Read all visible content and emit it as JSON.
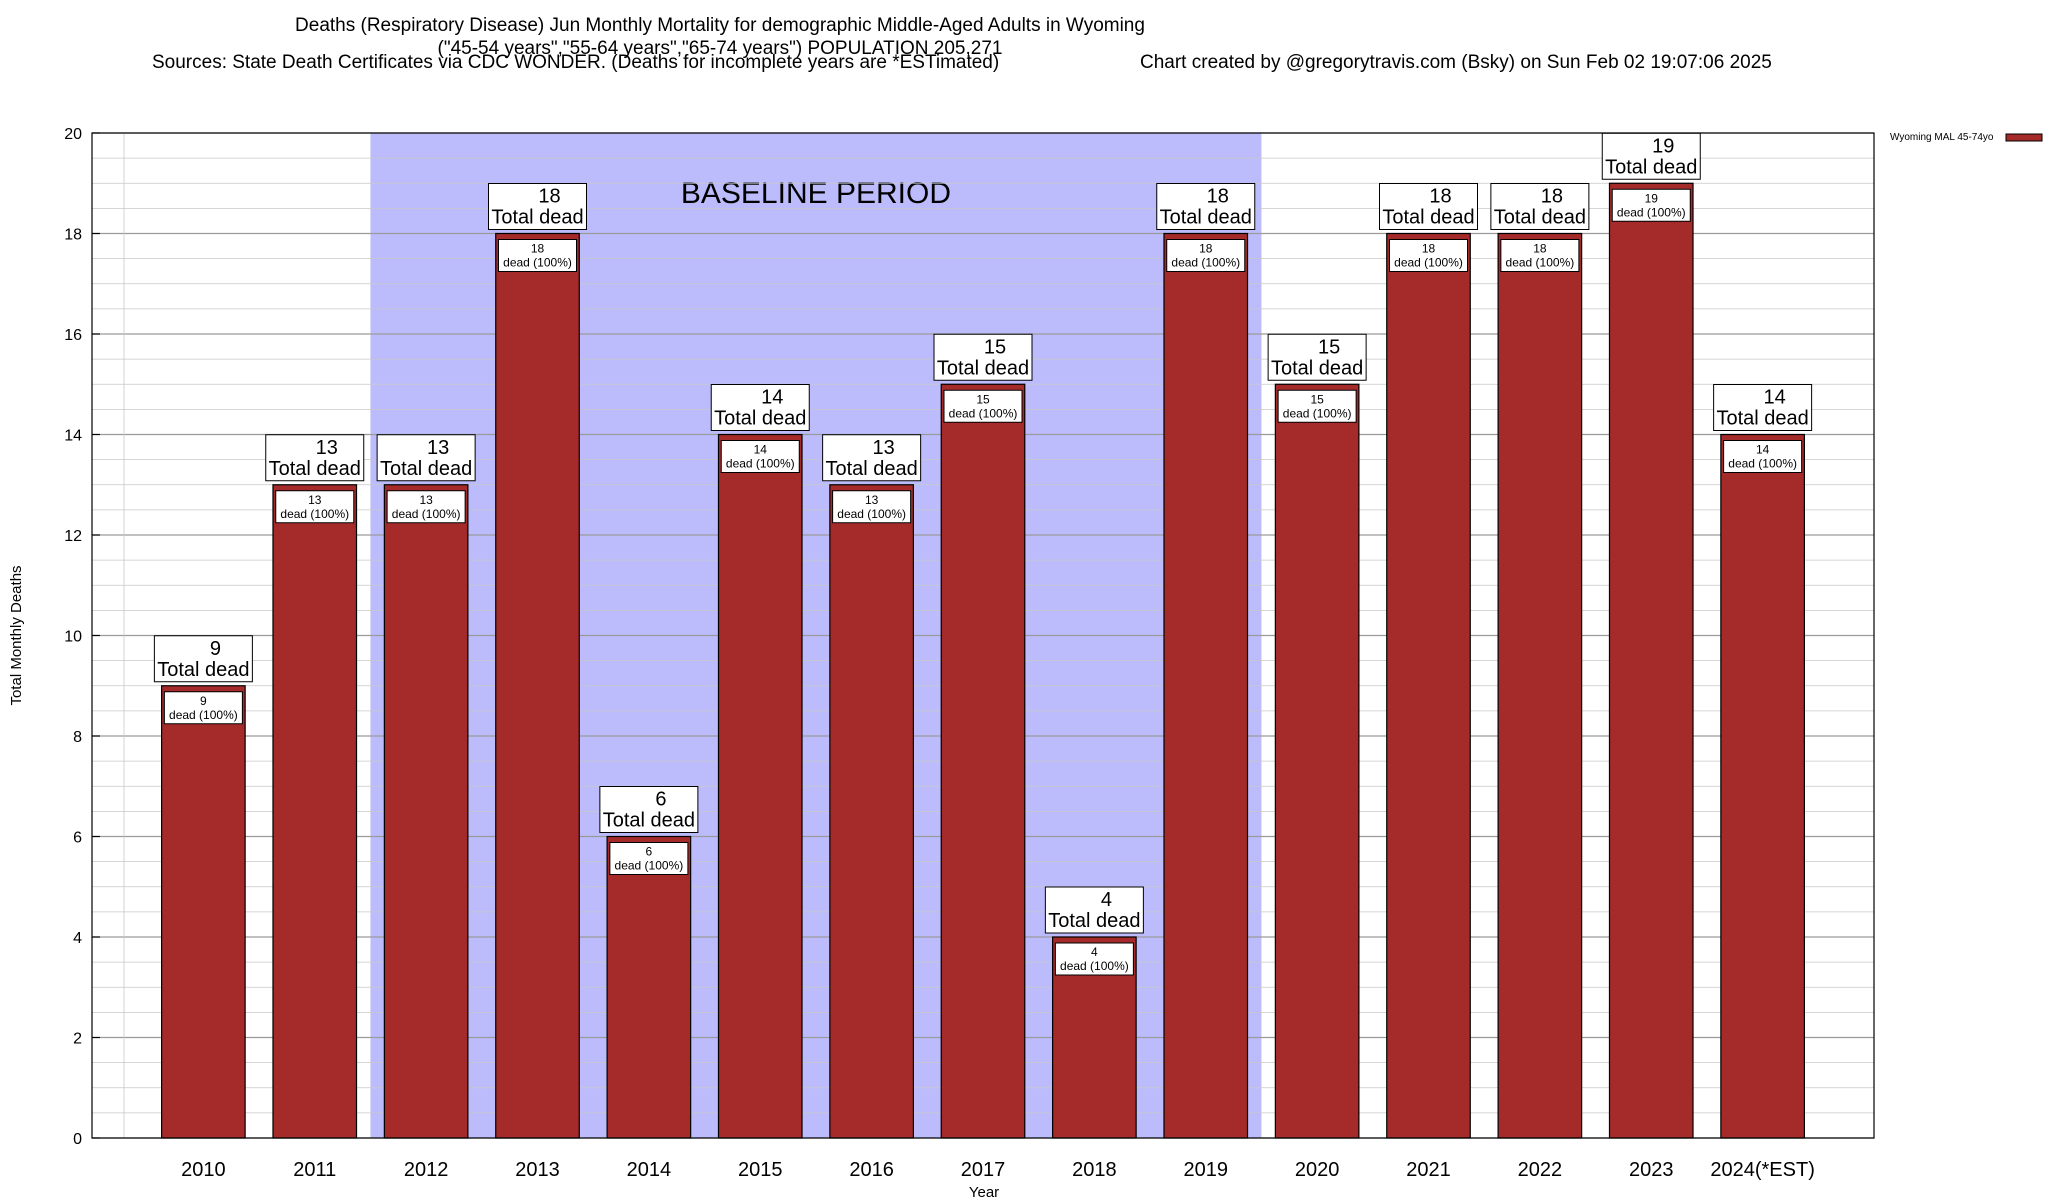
{
  "chart_data": {
    "type": "bar",
    "title": "Deaths (Respiratory Disease) Jun Monthly Mortality for demographic Middle-Aged Adults in Wyoming",
    "subtitle": "(\"45-54 years\",\"55-64 years\",\"65-74 years\") POPULATION 205,271",
    "sources": "Sources: State Death Certificates via CDC WONDER. (Deaths for incomplete years are *ESTimated)",
    "credit": "Chart created by @gregorytravis.com (Bsky) on Sun Feb 02 19:07:06 2025",
    "xlabel": "Year",
    "ylabel": "Total Monthly Deaths",
    "ylim": [
      0,
      20
    ],
    "yticks": [
      0,
      2,
      4,
      6,
      8,
      10,
      12,
      14,
      16,
      18,
      20
    ],
    "categories": [
      "2010",
      "2011",
      "2012",
      "2013",
      "2014",
      "2015",
      "2016",
      "2017",
      "2018",
      "2019",
      "2020",
      "2021",
      "2022",
      "2023",
      "2024(*EST)"
    ],
    "series": [
      {
        "name": "Wyoming MAL 45-74yo",
        "color": "#a52a2a",
        "values": [
          9,
          13,
          13,
          18,
          6,
          14,
          13,
          15,
          4,
          18,
          15,
          18,
          18,
          19,
          14
        ]
      }
    ],
    "total_label_suffix": "Total dead",
    "segment_label_suffix": "dead (100%)",
    "baseline": {
      "label": "BASELINE PERIOD",
      "start": "2012",
      "end": "2019",
      "color": "#bcbcfc"
    },
    "grid": true,
    "legend_position": "top-right"
  }
}
